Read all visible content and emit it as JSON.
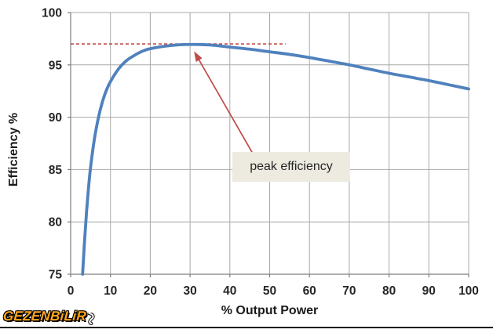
{
  "chart_data": {
    "type": "line",
    "title": "",
    "xlabel": "% Output Power",
    "ylabel": "Efficiency %",
    "xlim": [
      0,
      100
    ],
    "ylim": [
      75,
      100
    ],
    "x_ticks": [
      0,
      10,
      20,
      30,
      40,
      50,
      60,
      70,
      80,
      90,
      100
    ],
    "y_ticks": [
      75,
      80,
      85,
      90,
      95,
      100
    ],
    "grid": true,
    "legend": "none",
    "series": [
      {
        "name": "efficiency",
        "color": "#4F81BD",
        "points": [
          [
            3,
            75
          ],
          [
            3.5,
            78.2
          ],
          [
            4,
            81
          ],
          [
            4.5,
            83.3
          ],
          [
            5,
            85.2
          ],
          [
            6,
            88
          ],
          [
            7,
            90
          ],
          [
            8,
            91.5
          ],
          [
            9,
            92.6
          ],
          [
            10,
            93.4
          ],
          [
            12,
            94.6
          ],
          [
            14,
            95.4
          ],
          [
            16,
            95.9
          ],
          [
            18,
            96.3
          ],
          [
            20,
            96.55
          ],
          [
            25,
            96.85
          ],
          [
            30,
            96.95
          ],
          [
            35,
            96.9
          ],
          [
            40,
            96.7
          ],
          [
            45,
            96.5
          ],
          [
            50,
            96.25
          ],
          [
            55,
            96.0
          ],
          [
            60,
            95.7
          ],
          [
            65,
            95.35
          ],
          [
            70,
            95.0
          ],
          [
            75,
            94.6
          ],
          [
            80,
            94.2
          ],
          [
            85,
            93.85
          ],
          [
            90,
            93.5
          ],
          [
            95,
            93.1
          ],
          [
            100,
            92.7
          ]
        ]
      }
    ],
    "peak": {
      "x": 30,
      "y": 97
    },
    "annotation": {
      "label": "peak efficiency",
      "dash_y": 97,
      "dash_x_start": 0,
      "dash_x_end": 54,
      "arrow_tip_x": 31,
      "arrow_tip_y": 96.3,
      "arrow_tail_x": 45.8,
      "arrow_tail_y": 86.5,
      "color": "#BE4B48",
      "dash_color": "#C0504D"
    },
    "colors": {
      "gridline": "#a8a8a8",
      "axis": "#7f7f7f",
      "tick_text": "#262626"
    }
  },
  "logo": {
    "text": "GEZENBiLiR"
  }
}
